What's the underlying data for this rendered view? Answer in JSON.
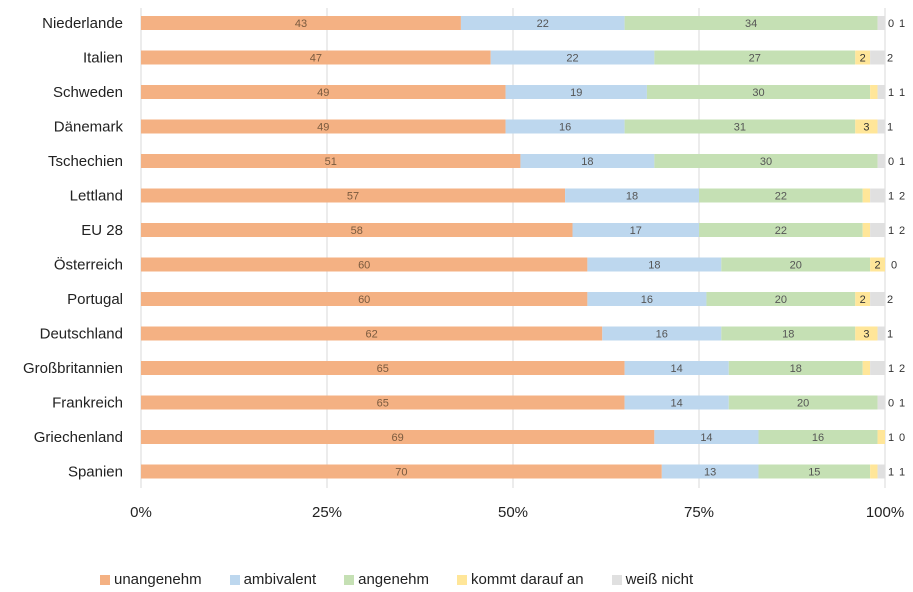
{
  "chart_data": {
    "type": "bar",
    "orientation": "horizontal",
    "stacked": true,
    "percent": true,
    "categories": [
      "Niederlande",
      "Italien",
      "Schweden",
      "Dänemark",
      "Tschechien",
      "Lettland",
      "EU 28",
      "Österreich",
      "Portugal",
      "Deutschland",
      "Großbritannien",
      "Frankreich",
      "Griechenland",
      "Spanien"
    ],
    "series": [
      {
        "name": "unangenehm",
        "color": "#f4b183",
        "values": [
          43,
          47,
          49,
          49,
          51,
          57,
          58,
          60,
          60,
          62,
          65,
          65,
          69,
          70
        ]
      },
      {
        "name": "ambivalent",
        "color": "#bdd7ee",
        "values": [
          22,
          22,
          19,
          16,
          18,
          18,
          17,
          18,
          16,
          16,
          14,
          14,
          14,
          13
        ]
      },
      {
        "name": "angenehm",
        "color": "#c5e0b4",
        "values": [
          34,
          27,
          30,
          31,
          30,
          22,
          22,
          20,
          20,
          18,
          18,
          20,
          16,
          15
        ]
      },
      {
        "name": "kommt darauf an",
        "color": "#ffe699",
        "values": [
          0,
          2,
          1,
          3,
          0,
          1,
          1,
          2,
          2,
          3,
          1,
          0,
          1,
          1
        ]
      },
      {
        "name": "weiß nicht",
        "color": "#e0e0e0",
        "values": [
          1,
          2,
          1,
          1,
          1,
          2,
          2,
          0,
          2,
          1,
          2,
          1,
          0,
          1
        ]
      }
    ],
    "xticks": [
      "0%",
      "25%",
      "50%",
      "75%",
      "100%"
    ],
    "xlim": [
      0,
      100
    ],
    "grid": "vertical",
    "legend": "bottom"
  }
}
